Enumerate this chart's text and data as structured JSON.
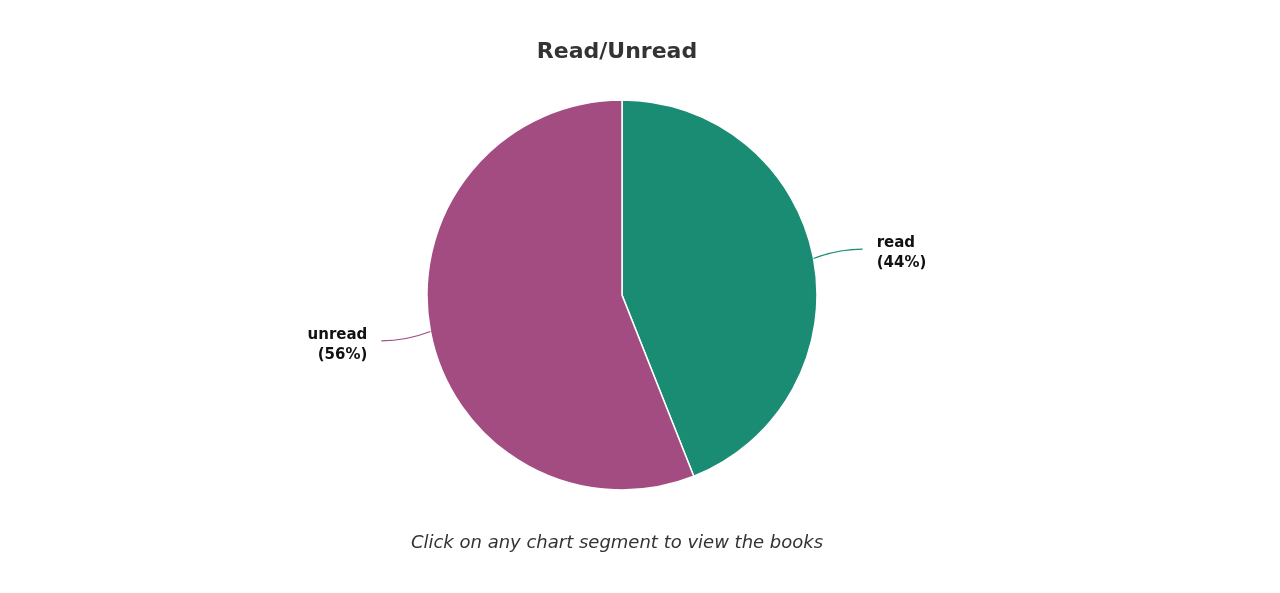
{
  "chart_data": {
    "type": "pie",
    "title": "Read/Unread",
    "categories": [
      "read",
      "unread"
    ],
    "values": [
      44,
      56
    ],
    "colors": [
      "#1a8c74",
      "#a24c82"
    ],
    "value_labels": [
      "(44%)",
      "(56%)"
    ],
    "annotations": [
      "Click on any chart segment to view the books"
    ]
  }
}
